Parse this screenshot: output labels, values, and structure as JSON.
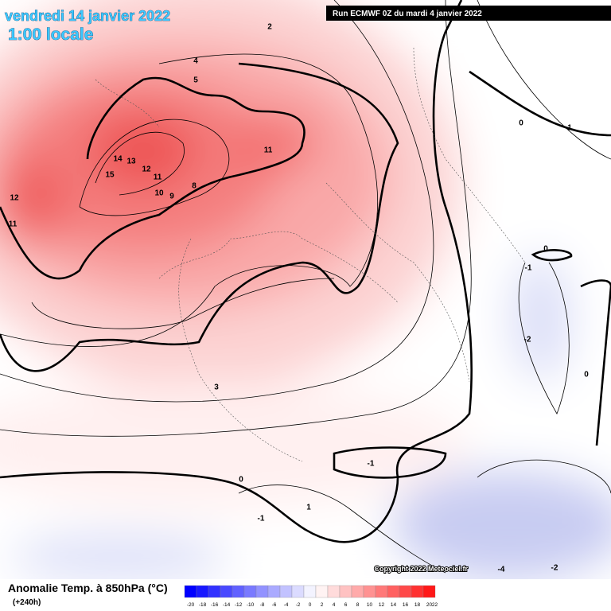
{
  "header": {
    "date": "vendredi 14 janvier 2022",
    "time": "1:00 locale",
    "run": "Run ECMWF 0Z du mardi 4 janvier 2022"
  },
  "footer": {
    "title": "Anomalie Temp. à 850hPa (°C)",
    "range": "(+240h)",
    "copyright": "Copyright 2022 Meteociel.fr"
  },
  "legend": {
    "ticks": [
      -20,
      -18,
      -16,
      -14,
      -12,
      -10,
      -8,
      -6,
      -4,
      -2,
      0,
      2,
      4,
      6,
      8,
      10,
      12,
      14,
      16,
      18,
      20,
      22
    ]
  },
  "contour_labels": [
    15,
    14,
    13,
    12,
    11,
    10,
    9,
    8,
    12,
    11,
    11,
    5,
    4,
    2,
    3,
    0,
    1,
    -1,
    -1,
    0,
    -1,
    -2,
    0,
    1,
    0,
    -4,
    -2
  ]
}
